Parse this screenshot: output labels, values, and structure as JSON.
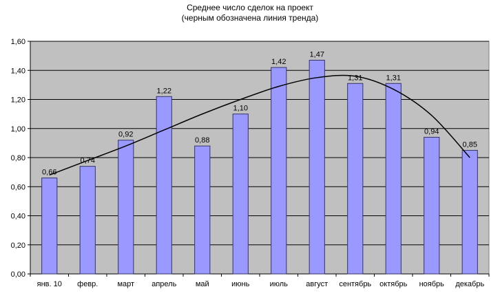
{
  "chart_data": {
    "type": "bar",
    "title": [
      "Среднее число сделок на проект",
      "(черным обозначена линия тренда)"
    ],
    "categories": [
      "янв. 10",
      "февр.",
      "март",
      "апрель",
      "май",
      "июнь",
      "июль",
      "август",
      "сентябрь",
      "октябрь",
      "ноябрь",
      "декабрь"
    ],
    "values": [
      0.66,
      0.74,
      0.92,
      1.22,
      0.88,
      1.1,
      1.42,
      1.47,
      1.31,
      1.31,
      0.94,
      0.85
    ],
    "value_labels": [
      "0,66",
      "0,74",
      "0,92",
      "1,22",
      "0,88",
      "1,10",
      "1,42",
      "1,47",
      "1,31",
      "1,31",
      "0,94",
      "0,85"
    ],
    "ylim": [
      0,
      1.6
    ],
    "yticks": [
      0,
      0.2,
      0.4,
      0.6,
      0.8,
      1.0,
      1.2,
      1.4,
      1.6
    ],
    "ytick_labels": [
      "0,00",
      "0,20",
      "0,40",
      "0,60",
      "0,80",
      "1,00",
      "1,20",
      "1,40",
      "1,60"
    ],
    "xlabel": "",
    "ylabel": "",
    "grid": true,
    "trendline": {
      "type": "polynomial",
      "values": [
        0.68,
        0.78,
        0.88,
        0.99,
        1.1,
        1.2,
        1.29,
        1.35,
        1.36,
        1.27,
        1.09,
        0.8
      ]
    },
    "colors": {
      "bar_fill": "#9999ff",
      "bar_stroke": "#333366",
      "plot_background": "#c0c0c0",
      "gridline": "#000000",
      "trendline": "#000000"
    }
  }
}
